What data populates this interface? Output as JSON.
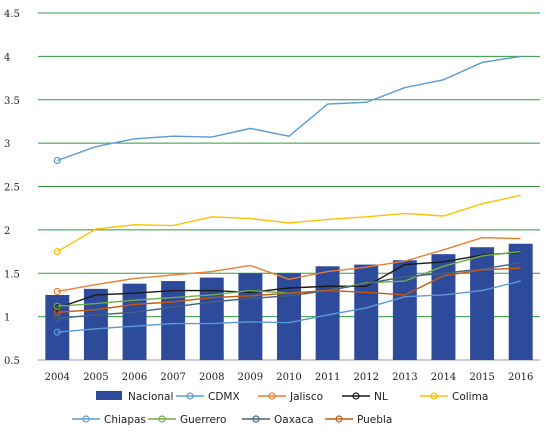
{
  "chart_data": {
    "type": "bar+line",
    "title": "",
    "xlabel": "",
    "ylabel": "",
    "ylim": [
      0.5,
      4.5
    ],
    "y_ticks": [
      "0.5",
      "1",
      "1.5",
      "2",
      "2.5",
      "3",
      "3.5",
      "4",
      "4.5"
    ],
    "categories": [
      "2004",
      "2005",
      "2006",
      "2007",
      "2008",
      "2009",
      "2010",
      "2011",
      "2012",
      "2013",
      "2014",
      "2015",
      "2016"
    ],
    "grid": "horizontal",
    "legend_position": "bottom",
    "bar_series": {
      "name": "Nacional",
      "color": "#2e4a9a",
      "values": [
        1.25,
        1.32,
        1.38,
        1.41,
        1.45,
        1.5,
        1.5,
        1.58,
        1.6,
        1.65,
        1.72,
        1.8,
        1.84
      ]
    },
    "series": [
      {
        "name": "CDMX",
        "color": "#5b9bd5",
        "values": [
          2.8,
          2.96,
          3.05,
          3.08,
          3.07,
          3.17,
          3.08,
          3.45,
          3.47,
          3.64,
          3.73,
          3.93,
          4.0
        ]
      },
      {
        "name": "Jalisco",
        "color": "#ed7d31",
        "values": [
          1.29,
          1.37,
          1.44,
          1.48,
          1.52,
          1.59,
          1.43,
          1.52,
          1.57,
          1.64,
          1.77,
          1.91,
          1.9
        ]
      },
      {
        "name": "NL",
        "color": "#1a1a1a",
        "values": [
          1.1,
          1.25,
          1.27,
          1.3,
          1.3,
          1.28,
          1.33,
          1.35,
          1.35,
          1.6,
          1.63,
          1.71,
          1.74
        ]
      },
      {
        "name": "Colima",
        "color": "#ffc000",
        "values": [
          1.75,
          2.01,
          2.06,
          2.05,
          2.15,
          2.13,
          2.08,
          2.12,
          2.15,
          2.19,
          2.16,
          2.3,
          2.4
        ]
      },
      {
        "name": "Chiapas",
        "color": "#5b9bd5",
        "values": [
          0.82,
          0.86,
          0.89,
          0.92,
          0.92,
          0.94,
          0.93,
          1.02,
          1.1,
          1.23,
          1.25,
          1.3,
          1.41
        ]
      },
      {
        "name": "Guerrero",
        "color": "#70ad47",
        "values": [
          1.12,
          1.15,
          1.19,
          1.22,
          1.25,
          1.3,
          1.27,
          1.3,
          1.39,
          1.41,
          1.58,
          1.7,
          1.75
        ]
      },
      {
        "name": "Oaxaca",
        "color": "#44607f",
        "values": [
          0.98,
          1.02,
          1.05,
          1.11,
          1.17,
          1.21,
          1.24,
          1.3,
          1.38,
          1.46,
          1.5,
          1.55,
          1.62
        ]
      },
      {
        "name": "Puebla",
        "color": "#c55a11",
        "values": [
          1.05,
          1.08,
          1.14,
          1.17,
          1.22,
          1.24,
          1.27,
          1.3,
          1.28,
          1.25,
          1.47,
          1.54,
          1.56
        ]
      }
    ]
  }
}
